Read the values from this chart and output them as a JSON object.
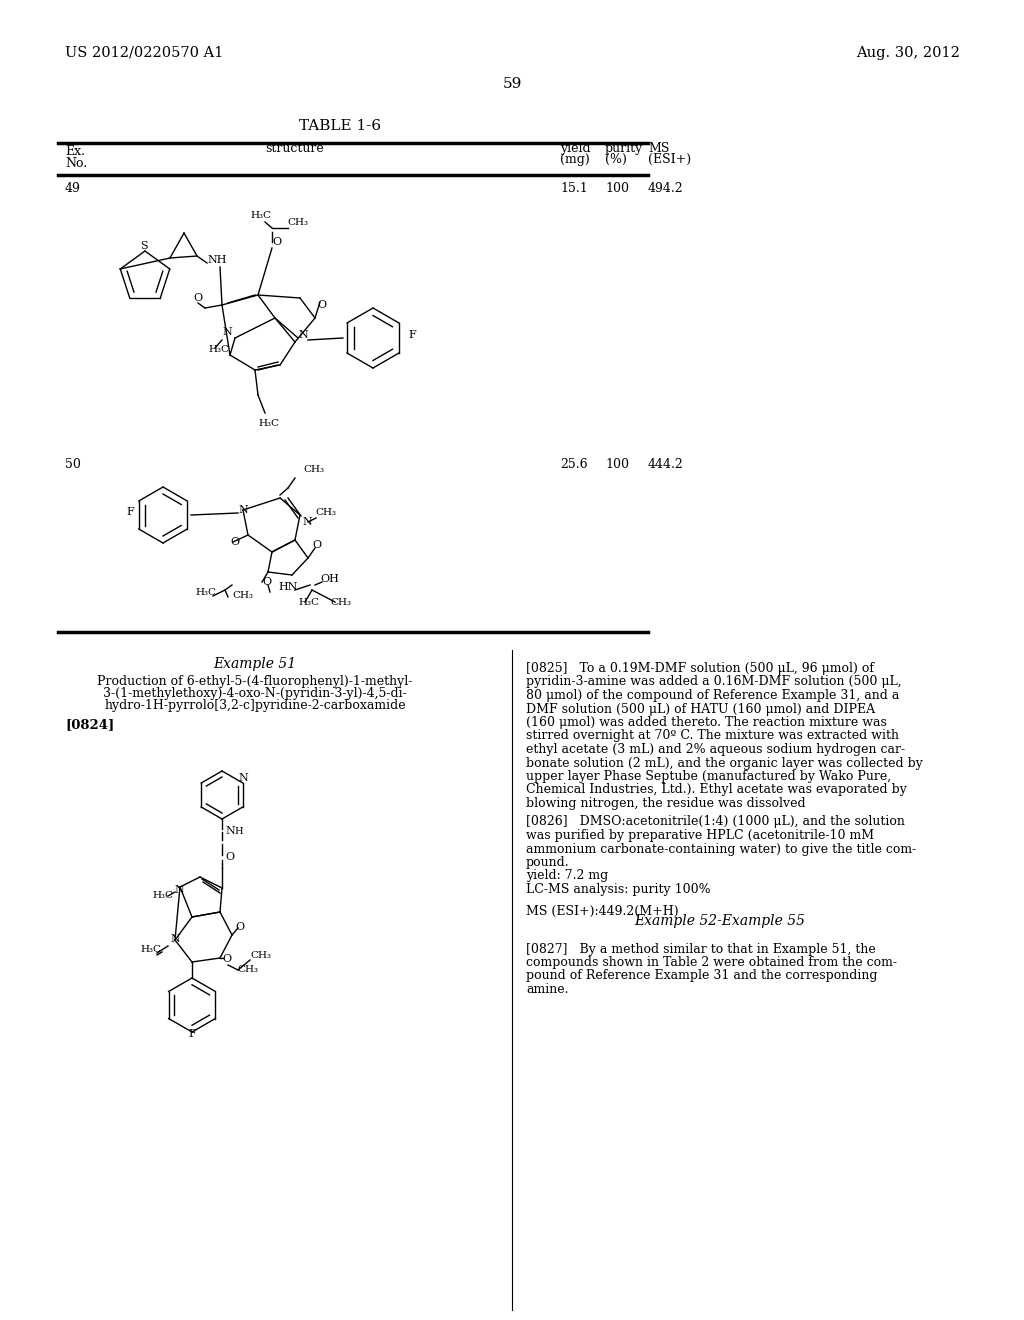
{
  "page_number": "59",
  "left_header": "US 2012/0220570 A1",
  "right_header": "Aug. 30, 2012",
  "table_title": "TABLE 1-6",
  "col_ex": "Ex.\nNo.",
  "col_structure": "structure",
  "col_yield": "yield\n(mg)",
  "col_purity": "purity\n(%)",
  "col_ms": "MS\n(ESI+)",
  "ex49": "49",
  "ex49_yield": "15.1",
  "ex49_purity": "100",
  "ex49_ms": "494.2",
  "ex50": "50",
  "ex50_yield": "25.6",
  "ex50_purity": "100",
  "ex50_ms": "444.2",
  "example51_title": "Example 51",
  "example51_compound_line1": "Production of 6-ethyl-5-(4-fluorophenyl)-1-methyl-",
  "example51_compound_line2": "3-(1-methylethoxy)-4-oxo-N-(pyridin-3-yl)-4,5-di-",
  "example51_compound_line3": "hydro-1H-pyrrolo[3,2-c]pyridine-2-carboxamide",
  "para0824_label": "[0824]",
  "para0825_line1": "[0825]   To a 0.19M-DMF solution (500 μL, 96 μmol) of",
  "para0825_line2": "pyridin-3-amine was added a 0.16M-DMF solution (500 μL,",
  "para0825_line3": "80 μmol) of the compound of Reference Example 31, and a",
  "para0825_line4": "DMF solution (500 μL) of HATU (160 μmol) and DIPEA",
  "para0825_line5": "(160 μmol) was added thereto. The reaction mixture was",
  "para0825_line6": "stirred overnight at 70º C. The mixture was extracted with",
  "para0825_line7": "ethyl acetate (3 mL) and 2% aqueous sodium hydrogen car-",
  "para0825_line8": "bonate solution (2 mL), and the organic layer was collected by",
  "para0825_line9": "upper layer Phase Septube (manufactured by Wako Pure,",
  "para0825_line10": "Chemical Industries, Ltd.). Ethyl acetate was evaporated by",
  "para0825_line11": "blowing nitrogen, the residue was dissolved",
  "para0826_line1": "[0826]   DMSO:acetonitrile(1:4) (1000 μL), and the solution",
  "para0826_line2": "was purified by preparative HPLC (acetonitrile-10 mM",
  "para0826_line3": "ammonium carbonate-containing water) to give the title com-",
  "para0826_line4": "pound.",
  "para0826_line5": "yield: 7.2 mg",
  "para0826_line6": "LC-MS analysis: purity 100%",
  "ms_line": "MS (ESI+):449.2(M+H)",
  "example52_title": "Example 52-Example 55",
  "para0827_line1": "[0827]   By a method similar to that in Example 51, the",
  "para0827_line2": "compounds shown in Table 2 were obtained from the com-",
  "para0827_line3": "pound of Reference Example 31 and the corresponding",
  "para0827_line4": "amine.",
  "bg_color": "#ffffff"
}
